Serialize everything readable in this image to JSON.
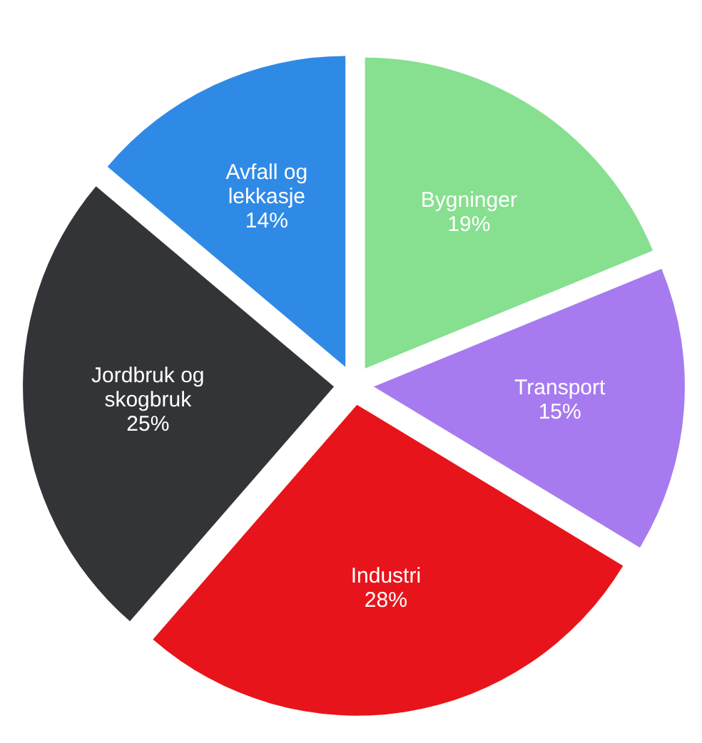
{
  "chart_data": {
    "type": "pie",
    "categories": [
      "Bygninger",
      "Transport",
      "Industri",
      "Jordbruk og\nskogbruk",
      "Avfall og\nlekkasje"
    ],
    "values": [
      19,
      15,
      28,
      25,
      14
    ],
    "colors": [
      "#86e08f",
      "#a77bef",
      "#e8141b",
      "#333438",
      "#2f8ae6"
    ],
    "value_labels": [
      "19%",
      "15%",
      "28%",
      "25%",
      "14%"
    ]
  }
}
